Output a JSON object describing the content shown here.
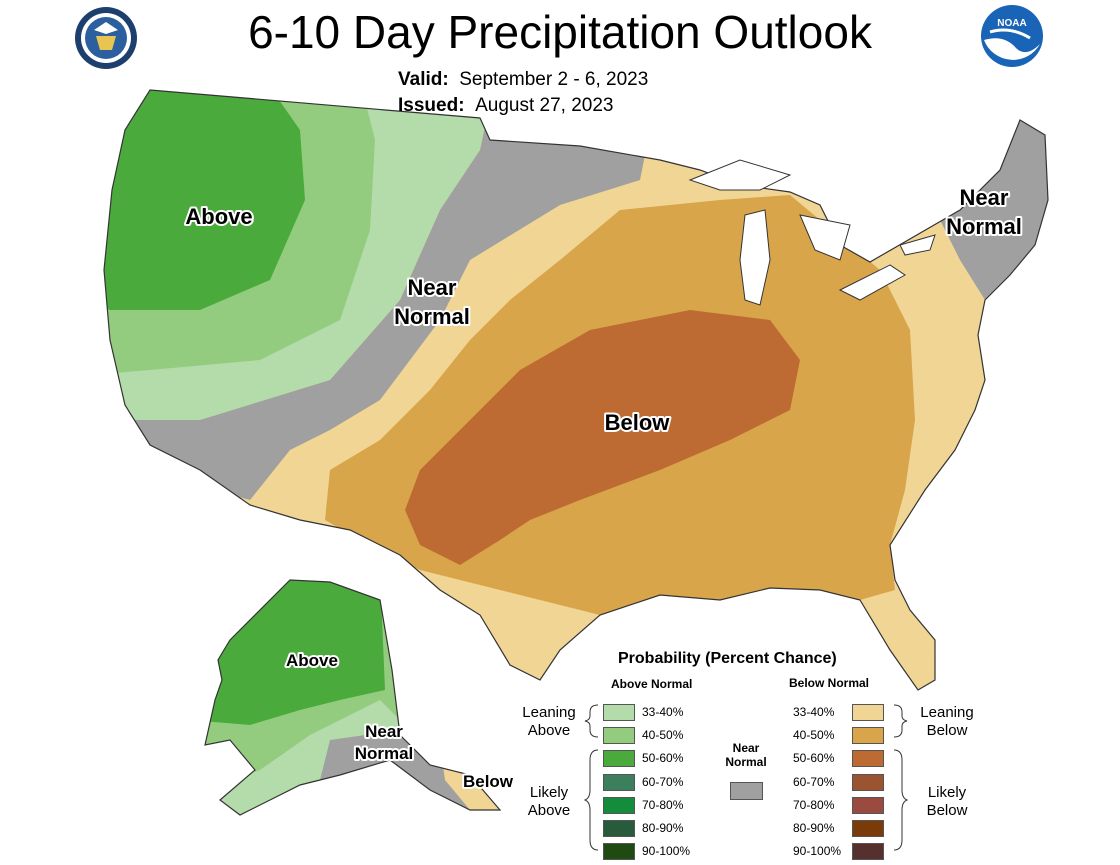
{
  "header": {
    "title": "6-10 Day Precipitation Outlook",
    "valid_label": "Valid:",
    "valid_value": "September 2 - 6, 2023",
    "issued_label": "Issued:",
    "issued_value": "August 27, 2023",
    "noaa_text": "NOAA"
  },
  "map": {
    "labels": {
      "above_west": "Above",
      "near_normal_line1": "Near",
      "near_normal_line2": "Normal",
      "near_normal_ne_line1": "Near",
      "near_normal_ne_line2": "Normal",
      "below_central": "Below",
      "above_alaska": "Above",
      "near_normal_ak_line1": "Near",
      "near_normal_ak_line2": "Normal",
      "below_alaska": "Below"
    },
    "colors": {
      "above_33_40": "#b3dcaa",
      "above_40_50": "#93cc7f",
      "above_50_60": "#4aab3c",
      "near_normal": "#a0a0a0",
      "below_33_40": "#f0d595",
      "below_40_50": "#d9a54b",
      "below_50_60": "#bd6b33"
    }
  },
  "legend": {
    "title": "Probability (Percent Chance)",
    "above_header": "Above Normal",
    "below_header": "Below Normal",
    "near_normal_line1": "Near",
    "near_normal_line2": "Normal",
    "leaning_above_line1": "Leaning",
    "leaning_above_line2": "Above",
    "likely_above_line1": "Likely",
    "likely_above_line2": "Above",
    "leaning_below_line1": "Leaning",
    "leaning_below_line2": "Below",
    "likely_below_line1": "Likely",
    "likely_below_line2": "Below",
    "above_entries": [
      {
        "range": "33-40%",
        "color": "#b3dcaa"
      },
      {
        "range": "40-50%",
        "color": "#93cc7f"
      },
      {
        "range": "50-60%",
        "color": "#4aab3c"
      },
      {
        "range": "60-70%",
        "color": "#3b7f5c"
      },
      {
        "range": "70-80%",
        "color": "#138d3b"
      },
      {
        "range": "80-90%",
        "color": "#285a3c"
      },
      {
        "range": "90-100%",
        "color": "#1f4a12"
      }
    ],
    "below_entries": [
      {
        "range": "33-40%",
        "color": "#f0d595"
      },
      {
        "range": "40-50%",
        "color": "#d9a54b"
      },
      {
        "range": "50-60%",
        "color": "#bd6b33"
      },
      {
        "range": "60-70%",
        "color": "#9b5330"
      },
      {
        "range": "70-80%",
        "color": "#9a4a3f"
      },
      {
        "range": "80-90%",
        "color": "#7a3a0a"
      },
      {
        "range": "90-100%",
        "color": "#56302e"
      }
    ],
    "near_normal_color": "#a0a0a0"
  }
}
